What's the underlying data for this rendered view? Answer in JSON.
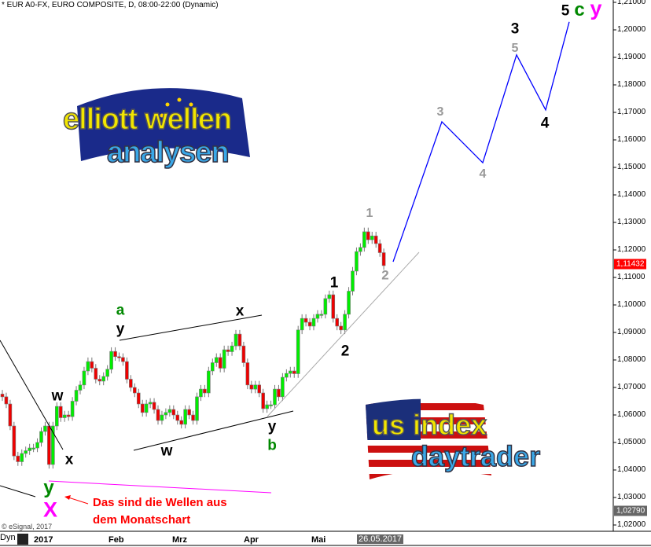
{
  "header": {
    "title": "* EUR A0-FX, EURO COMPOSITE, D, 08:00-22:00 (Dynamic)"
  },
  "logos": {
    "top": {
      "line1": "elliott wellen",
      "line2": "analysen"
    },
    "bottom": {
      "line1": "us index",
      "line2": "daytrader"
    }
  },
  "annotation": {
    "line1": "Das sind die Wellen aus",
    "line2": "dem Monatschart"
  },
  "copyright": "© eSignal, 2017",
  "bottom_bar": {
    "mode": "Dyn",
    "date_box": "26.05.2017"
  },
  "price_tags": {
    "last": "1,11432",
    "low": "1,02790"
  },
  "colors": {
    "up": "#00ee00",
    "down": "#ee0000",
    "projection": "#0000ff",
    "trend_gray": "#aaaaaa",
    "magenta": "#ff00ff",
    "green": "#008800",
    "red_tag": "#ff0000",
    "gray_tag": "#666666"
  },
  "wave_labels": {
    "a": "a",
    "y1": "y",
    "x1": "x",
    "w1": "w",
    "x2": "x",
    "w2": "w",
    "y2": "y",
    "b": "b",
    "b1": "1",
    "b2": "2",
    "g1": "1",
    "g2": "2",
    "g3": "3",
    "g4": "4",
    "b3": "3",
    "g5": "5",
    "b4": "4",
    "b5": "5",
    "c": "c",
    "ytop": "y",
    "ybot": "y",
    "xbot": "X"
  },
  "chart_data": {
    "type": "candlestick",
    "title": "* EUR A0-FX, EURO COMPOSITE, D, 08:00-22:00 (Dynamic)",
    "x_ticks": [
      "2017",
      "Feb",
      "Mrz",
      "Apr",
      "Mai"
    ],
    "y_ticks": [
      "1,21000",
      "1,20000",
      "1,19000",
      "1,18000",
      "1,17000",
      "1,16000",
      "1,15000",
      "1,14000",
      "1,13000",
      "1,12000",
      "1,11000",
      "1,10000",
      "1,09000",
      "1,08000",
      "1,07000",
      "1,06000",
      "1,05000",
      "1,04000",
      "1,03000",
      "1,02000"
    ],
    "ylim": [
      1.02,
      1.21
    ],
    "grid": false,
    "close": [
      1.0666,
      1.064,
      1.056,
      1.0451,
      1.043,
      1.046,
      1.047,
      1.048,
      1.048,
      1.05,
      1.054,
      1.056,
      1.042,
      1.056,
      1.0631,
      1.059,
      1.06,
      1.0594,
      1.065,
      1.069,
      1.0709,
      1.076,
      1.0794,
      1.077,
      1.073,
      1.0723,
      1.074,
      1.0766,
      1.0831,
      1.0812,
      1.0809,
      1.0794,
      1.073,
      1.07,
      1.068,
      1.064,
      1.0609,
      1.064,
      1.0646,
      1.062,
      1.058,
      1.06,
      1.0609,
      1.062,
      1.06,
      1.058,
      1.0566,
      1.062,
      1.06,
      1.058,
      1.0666,
      1.0694,
      1.068,
      1.076,
      1.079,
      1.0809,
      1.077,
      1.0837,
      1.083,
      1.0851,
      1.0894,
      1.0851,
      1.079,
      1.0709,
      1.0694,
      1.0709,
      1.068,
      1.0623,
      1.0637,
      1.0637,
      1.0694,
      1.0666,
      1.0737,
      1.0751,
      1.076,
      1.075,
      1.0909,
      1.0951,
      1.0937,
      1.0923,
      1.0951,
      1.0966,
      1.0966,
      1.1023,
      1.1037,
      1.0951,
      1.0923,
      1.0909,
      1.0966,
      1.105,
      1.1123,
      1.1194,
      1.1209,
      1.1266,
      1.1237,
      1.1251,
      1.1223,
      1.119,
      1.1143
    ],
    "projection": [
      1.1157,
      1.1666,
      1.1517,
      1.1909,
      1.1709,
      1.2029
    ],
    "last_price": 1.11432
  }
}
